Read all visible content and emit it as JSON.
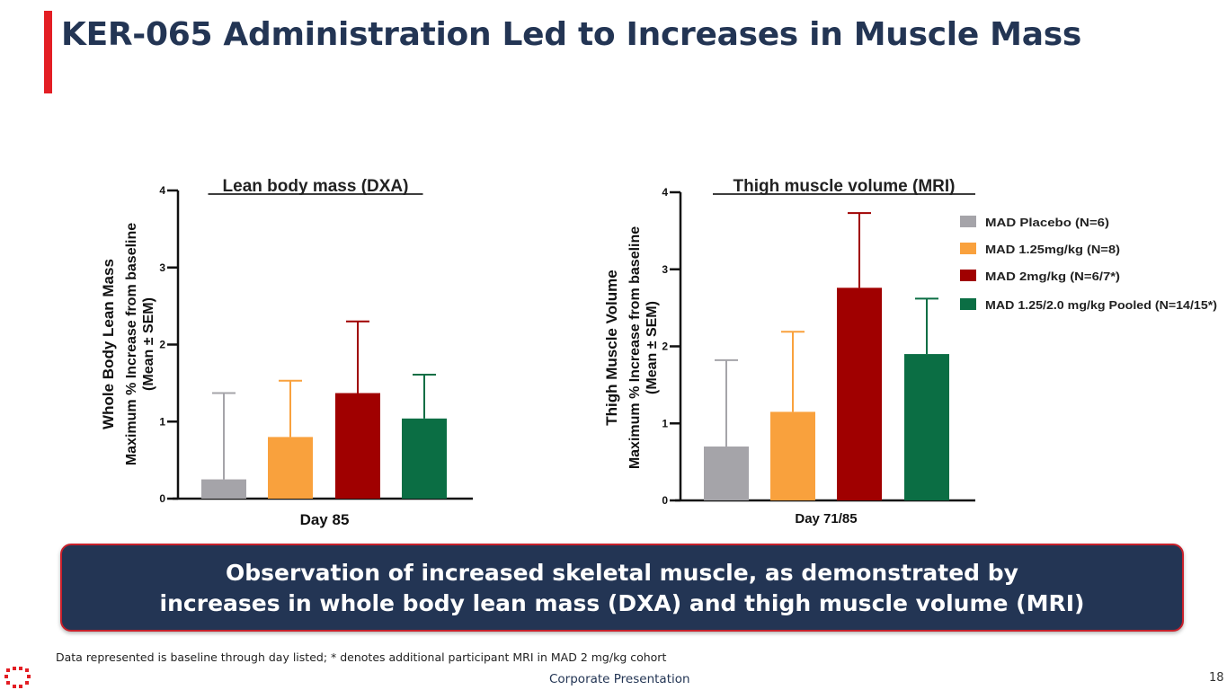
{
  "title": "KER-065 Administration Led to Increases in Muscle Mass",
  "colors": {
    "accent": "#e31e24",
    "navy": "#233554",
    "placebo": "#a5a4a9",
    "mad125": "#f9a13d",
    "mad2": "#a00000",
    "pooled": "#0b6e44"
  },
  "chart_data": [
    {
      "type": "bar",
      "title": "Lean body mass (DXA)",
      "xlabel": "Day 85",
      "ylabel_lines": [
        "Whole Body Lean Mass",
        "Maximum % Increase from baseline",
        "(Mean ±  SEM)"
      ],
      "ylim": [
        0,
        4
      ],
      "yticks": [
        "0",
        "1",
        "2",
        "3",
        "4"
      ],
      "categories": [
        "MAD Placebo (N=6)",
        "MAD 1.25mg/kg (N=8)",
        "MAD 2mg/kg (N=6/7*)",
        "MAD 1.25/2.0 mg/kg Pooled (N=14/15*)"
      ],
      "values": [
        0.25,
        0.8,
        1.37,
        1.04
      ],
      "errors": [
        1.12,
        0.73,
        0.93,
        0.57
      ]
    },
    {
      "type": "bar",
      "title": "Thigh muscle volume (MRI)",
      "xlabel": "Day 71/85",
      "ylabel_lines": [
        "Thigh Muscle Volume",
        "Maximum % Increase from baseline",
        "(Mean ±  SEM)"
      ],
      "ylim": [
        0,
        4
      ],
      "yticks": [
        "0",
        "1",
        "2",
        "3",
        "4"
      ],
      "categories": [
        "MAD Placebo (N=6)",
        "MAD 1.25mg/kg (N=8)",
        "MAD 2mg/kg (N=6/7*)",
        "MAD 1.25/2.0 mg/kg Pooled (N=14/15*)"
      ],
      "values": [
        0.7,
        1.15,
        2.76,
        1.9
      ],
      "errors": [
        1.12,
        1.04,
        0.97,
        0.72
      ]
    }
  ],
  "legend": [
    "MAD Placebo (N=6)",
    "MAD 1.25mg/kg (N=8)",
    "MAD 2mg/kg (N=6/7*)",
    "MAD 1.25/2.0 mg/kg Pooled (N=14/15*)"
  ],
  "callout": {
    "line1": "Observation of increased skeletal muscle, as demonstrated by",
    "line2": "increases in whole body lean mass (DXA) and thigh muscle volume (MRI)"
  },
  "footnote": "Data represented is baseline through day listed; * denotes additional participant MRI  in MAD 2 mg/kg cohort",
  "footer": {
    "center": "Corporate Presentation",
    "page": "18"
  }
}
